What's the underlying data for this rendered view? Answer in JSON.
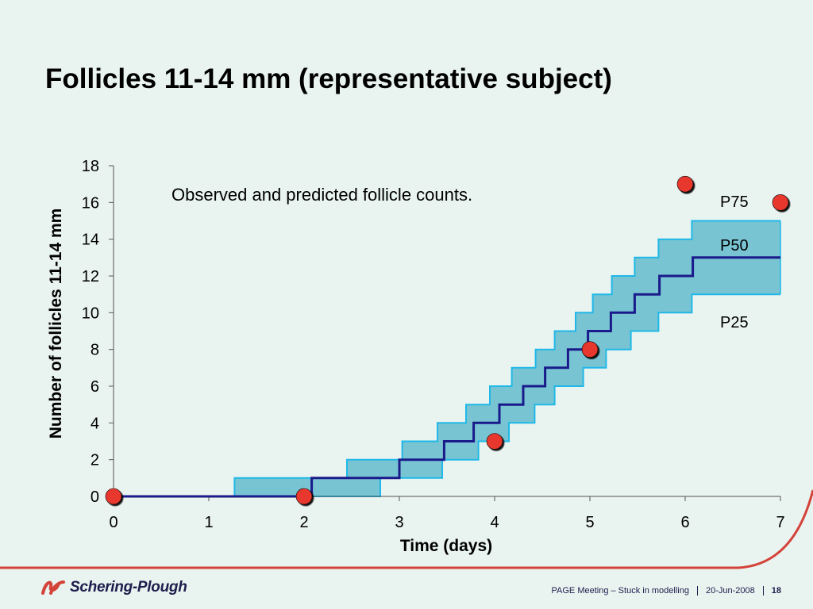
{
  "slide": {
    "title": "Follicles 11-14 mm (representative subject)"
  },
  "footer": {
    "brand": "Schering-Plough",
    "meeting": "PAGE Meeting – Stuck in modelling",
    "date": "20-Jun-2008",
    "page": "18"
  },
  "colors": {
    "band_fill": "#78c4d2",
    "band_edge": "#1fb8e8",
    "median_line": "#1a1a8a",
    "observed_point": "#e8372e",
    "accent_curve": "#d4433a"
  },
  "chart_data": {
    "type": "line",
    "annotation": "Observed and predicted follicle counts.",
    "xlabel": "Time (days)",
    "ylabel": "Number of follicles 11-14 mm",
    "xlim": [
      0,
      7
    ],
    "ylim": [
      0,
      18
    ],
    "xticks": [
      "0",
      "1",
      "2",
      "3",
      "4",
      "5",
      "6",
      "7"
    ],
    "yticks": [
      "0",
      "2",
      "4",
      "6",
      "8",
      "10",
      "12",
      "14",
      "16",
      "18"
    ],
    "percentile_labels": {
      "upper": "P75",
      "median": "P50",
      "lower": "P25"
    },
    "series": [
      {
        "name": "P75",
        "steps": [
          [
            0,
            0
          ],
          [
            1.27,
            1
          ],
          [
            2.45,
            2
          ],
          [
            3.03,
            3
          ],
          [
            3.4,
            4
          ],
          [
            3.7,
            5
          ],
          [
            3.95,
            6
          ],
          [
            4.18,
            7
          ],
          [
            4.43,
            8
          ],
          [
            4.63,
            9
          ],
          [
            4.85,
            10
          ],
          [
            5.03,
            11
          ],
          [
            5.23,
            12
          ],
          [
            5.47,
            13
          ],
          [
            5.72,
            14
          ],
          [
            6.07,
            15
          ],
          [
            7,
            15
          ]
        ]
      },
      {
        "name": "P50",
        "steps": [
          [
            0,
            0
          ],
          [
            2.08,
            1
          ],
          [
            3.0,
            2
          ],
          [
            3.47,
            3
          ],
          [
            3.78,
            4
          ],
          [
            4.05,
            5
          ],
          [
            4.3,
            6
          ],
          [
            4.53,
            7
          ],
          [
            4.77,
            8
          ],
          [
            4.98,
            9
          ],
          [
            5.22,
            10
          ],
          [
            5.47,
            11
          ],
          [
            5.73,
            12
          ],
          [
            6.08,
            13
          ],
          [
            7,
            13
          ]
        ]
      },
      {
        "name": "P25",
        "steps": [
          [
            0,
            0
          ],
          [
            2.8,
            1
          ],
          [
            3.45,
            2
          ],
          [
            3.83,
            3
          ],
          [
            4.15,
            4
          ],
          [
            4.42,
            5
          ],
          [
            4.63,
            6
          ],
          [
            4.93,
            7
          ],
          [
            5.17,
            8
          ],
          [
            5.43,
            9
          ],
          [
            5.72,
            10
          ],
          [
            6.07,
            11
          ],
          [
            7,
            11
          ]
        ]
      },
      {
        "name": "Observed",
        "x": [
          0,
          2,
          4,
          5,
          6,
          7
        ],
        "y": [
          0,
          0,
          3,
          8,
          17,
          16
        ]
      }
    ]
  }
}
